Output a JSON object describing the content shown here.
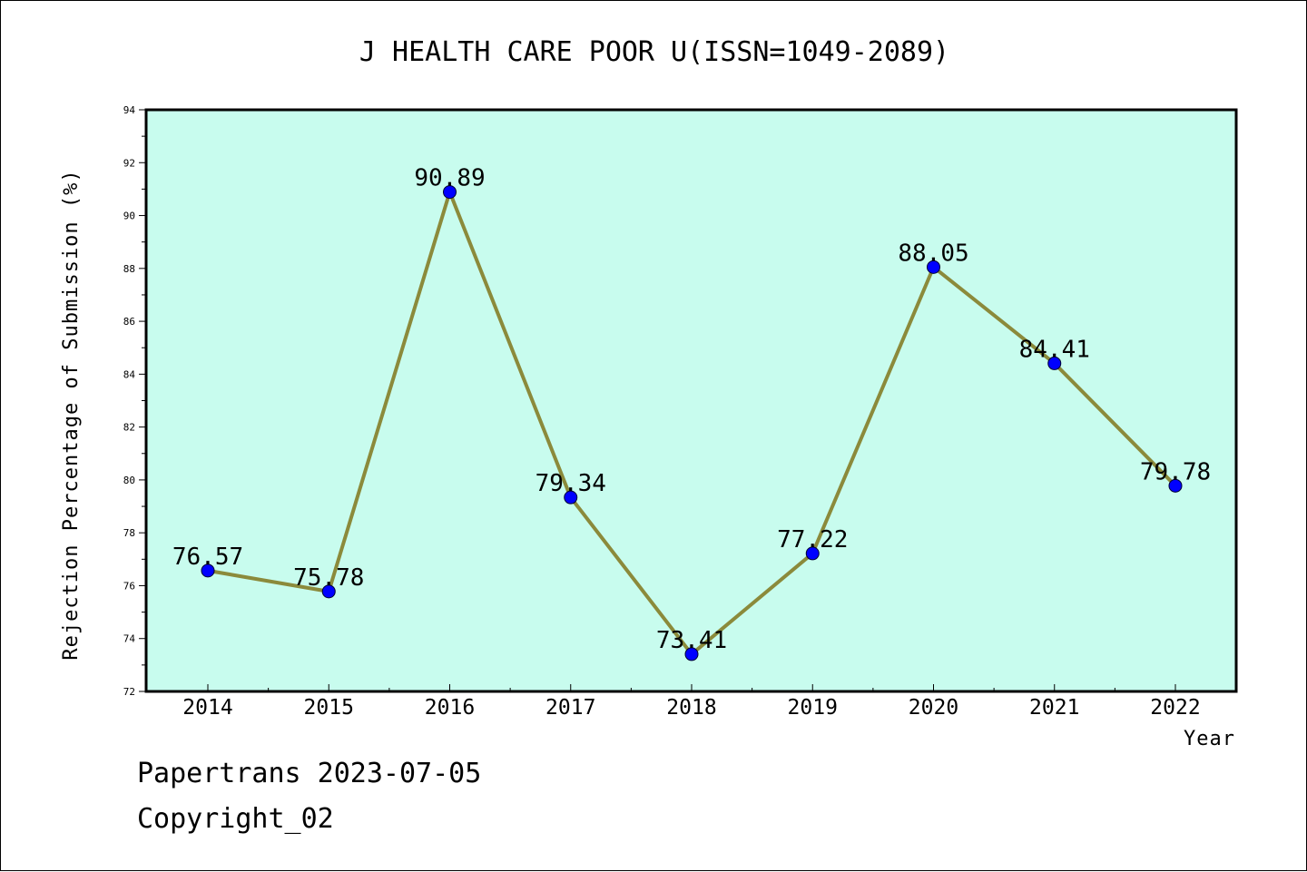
{
  "chart_data": {
    "type": "line",
    "title": "J HEALTH CARE POOR U(ISSN=1049-2089)",
    "xlabel": "Year",
    "ylabel": "Rejection Percentage of Submission (%)",
    "categories": [
      "2014",
      "2015",
      "2016",
      "2017",
      "2018",
      "2019",
      "2020",
      "2021",
      "2022"
    ],
    "values": [
      76.57,
      75.78,
      90.89,
      79.34,
      73.41,
      77.22,
      88.05,
      84.41,
      79.78
    ],
    "data_labels": [
      "76.57",
      "75.78",
      "90.89",
      "79.34",
      "73.41",
      "77.22",
      "88.05",
      "84.41",
      "79.78"
    ],
    "ylim": [
      72,
      94
    ],
    "yticks": [
      "72",
      "74",
      "76",
      "78",
      "80",
      "82",
      "84",
      "86",
      "88",
      "90",
      "92",
      "94"
    ],
    "grid": false,
    "legend": "none"
  },
  "colors": {
    "plot_background": "#c8fcee",
    "line": "#8b8a3b",
    "marker": "#0000ff",
    "axis": "#000000"
  },
  "footer": {
    "line1": "Papertrans 2023-07-05",
    "line2": "Copyright_02"
  }
}
